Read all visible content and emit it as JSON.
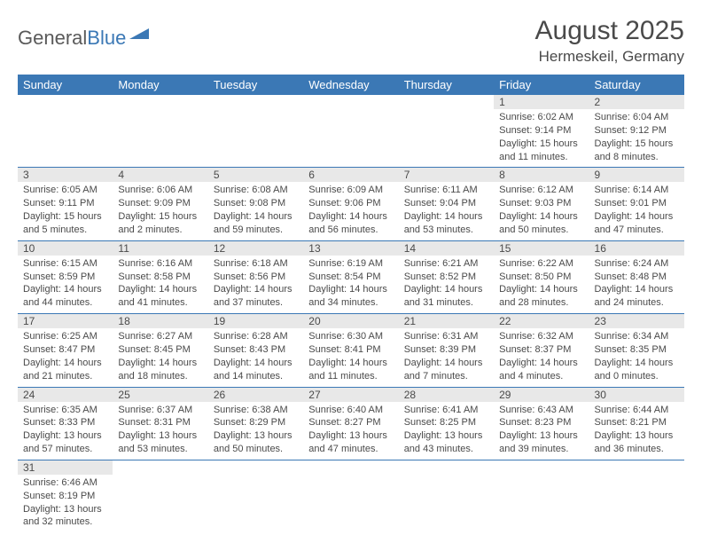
{
  "logo": {
    "text1": "General",
    "text2": "Blue"
  },
  "title": "August 2025",
  "location": "Hermeskeil, Germany",
  "day_headers": [
    "Sunday",
    "Monday",
    "Tuesday",
    "Wednesday",
    "Thursday",
    "Friday",
    "Saturday"
  ],
  "colors": {
    "header_bg": "#3b78b5",
    "header_text": "#ffffff",
    "daynum_bg": "#e8e8e8",
    "text": "#4a4a4a",
    "row_border": "#3b78b5"
  },
  "fonts": {
    "title_size": 30,
    "location_size": 17,
    "header_size": 13,
    "body_size": 11
  },
  "weeks": [
    [
      null,
      null,
      null,
      null,
      null,
      {
        "n": "1",
        "sr": "Sunrise: 6:02 AM",
        "ss": "Sunset: 9:14 PM",
        "d1": "Daylight: 15 hours",
        "d2": "and 11 minutes."
      },
      {
        "n": "2",
        "sr": "Sunrise: 6:04 AM",
        "ss": "Sunset: 9:12 PM",
        "d1": "Daylight: 15 hours",
        "d2": "and 8 minutes."
      }
    ],
    [
      {
        "n": "3",
        "sr": "Sunrise: 6:05 AM",
        "ss": "Sunset: 9:11 PM",
        "d1": "Daylight: 15 hours",
        "d2": "and 5 minutes."
      },
      {
        "n": "4",
        "sr": "Sunrise: 6:06 AM",
        "ss": "Sunset: 9:09 PM",
        "d1": "Daylight: 15 hours",
        "d2": "and 2 minutes."
      },
      {
        "n": "5",
        "sr": "Sunrise: 6:08 AM",
        "ss": "Sunset: 9:08 PM",
        "d1": "Daylight: 14 hours",
        "d2": "and 59 minutes."
      },
      {
        "n": "6",
        "sr": "Sunrise: 6:09 AM",
        "ss": "Sunset: 9:06 PM",
        "d1": "Daylight: 14 hours",
        "d2": "and 56 minutes."
      },
      {
        "n": "7",
        "sr": "Sunrise: 6:11 AM",
        "ss": "Sunset: 9:04 PM",
        "d1": "Daylight: 14 hours",
        "d2": "and 53 minutes."
      },
      {
        "n": "8",
        "sr": "Sunrise: 6:12 AM",
        "ss": "Sunset: 9:03 PM",
        "d1": "Daylight: 14 hours",
        "d2": "and 50 minutes."
      },
      {
        "n": "9",
        "sr": "Sunrise: 6:14 AM",
        "ss": "Sunset: 9:01 PM",
        "d1": "Daylight: 14 hours",
        "d2": "and 47 minutes."
      }
    ],
    [
      {
        "n": "10",
        "sr": "Sunrise: 6:15 AM",
        "ss": "Sunset: 8:59 PM",
        "d1": "Daylight: 14 hours",
        "d2": "and 44 minutes."
      },
      {
        "n": "11",
        "sr": "Sunrise: 6:16 AM",
        "ss": "Sunset: 8:58 PM",
        "d1": "Daylight: 14 hours",
        "d2": "and 41 minutes."
      },
      {
        "n": "12",
        "sr": "Sunrise: 6:18 AM",
        "ss": "Sunset: 8:56 PM",
        "d1": "Daylight: 14 hours",
        "d2": "and 37 minutes."
      },
      {
        "n": "13",
        "sr": "Sunrise: 6:19 AM",
        "ss": "Sunset: 8:54 PM",
        "d1": "Daylight: 14 hours",
        "d2": "and 34 minutes."
      },
      {
        "n": "14",
        "sr": "Sunrise: 6:21 AM",
        "ss": "Sunset: 8:52 PM",
        "d1": "Daylight: 14 hours",
        "d2": "and 31 minutes."
      },
      {
        "n": "15",
        "sr": "Sunrise: 6:22 AM",
        "ss": "Sunset: 8:50 PM",
        "d1": "Daylight: 14 hours",
        "d2": "and 28 minutes."
      },
      {
        "n": "16",
        "sr": "Sunrise: 6:24 AM",
        "ss": "Sunset: 8:48 PM",
        "d1": "Daylight: 14 hours",
        "d2": "and 24 minutes."
      }
    ],
    [
      {
        "n": "17",
        "sr": "Sunrise: 6:25 AM",
        "ss": "Sunset: 8:47 PM",
        "d1": "Daylight: 14 hours",
        "d2": "and 21 minutes."
      },
      {
        "n": "18",
        "sr": "Sunrise: 6:27 AM",
        "ss": "Sunset: 8:45 PM",
        "d1": "Daylight: 14 hours",
        "d2": "and 18 minutes."
      },
      {
        "n": "19",
        "sr": "Sunrise: 6:28 AM",
        "ss": "Sunset: 8:43 PM",
        "d1": "Daylight: 14 hours",
        "d2": "and 14 minutes."
      },
      {
        "n": "20",
        "sr": "Sunrise: 6:30 AM",
        "ss": "Sunset: 8:41 PM",
        "d1": "Daylight: 14 hours",
        "d2": "and 11 minutes."
      },
      {
        "n": "21",
        "sr": "Sunrise: 6:31 AM",
        "ss": "Sunset: 8:39 PM",
        "d1": "Daylight: 14 hours",
        "d2": "and 7 minutes."
      },
      {
        "n": "22",
        "sr": "Sunrise: 6:32 AM",
        "ss": "Sunset: 8:37 PM",
        "d1": "Daylight: 14 hours",
        "d2": "and 4 minutes."
      },
      {
        "n": "23",
        "sr": "Sunrise: 6:34 AM",
        "ss": "Sunset: 8:35 PM",
        "d1": "Daylight: 14 hours",
        "d2": "and 0 minutes."
      }
    ],
    [
      {
        "n": "24",
        "sr": "Sunrise: 6:35 AM",
        "ss": "Sunset: 8:33 PM",
        "d1": "Daylight: 13 hours",
        "d2": "and 57 minutes."
      },
      {
        "n": "25",
        "sr": "Sunrise: 6:37 AM",
        "ss": "Sunset: 8:31 PM",
        "d1": "Daylight: 13 hours",
        "d2": "and 53 minutes."
      },
      {
        "n": "26",
        "sr": "Sunrise: 6:38 AM",
        "ss": "Sunset: 8:29 PM",
        "d1": "Daylight: 13 hours",
        "d2": "and 50 minutes."
      },
      {
        "n": "27",
        "sr": "Sunrise: 6:40 AM",
        "ss": "Sunset: 8:27 PM",
        "d1": "Daylight: 13 hours",
        "d2": "and 47 minutes."
      },
      {
        "n": "28",
        "sr": "Sunrise: 6:41 AM",
        "ss": "Sunset: 8:25 PM",
        "d1": "Daylight: 13 hours",
        "d2": "and 43 minutes."
      },
      {
        "n": "29",
        "sr": "Sunrise: 6:43 AM",
        "ss": "Sunset: 8:23 PM",
        "d1": "Daylight: 13 hours",
        "d2": "and 39 minutes."
      },
      {
        "n": "30",
        "sr": "Sunrise: 6:44 AM",
        "ss": "Sunset: 8:21 PM",
        "d1": "Daylight: 13 hours",
        "d2": "and 36 minutes."
      }
    ],
    [
      {
        "n": "31",
        "sr": "Sunrise: 6:46 AM",
        "ss": "Sunset: 8:19 PM",
        "d1": "Daylight: 13 hours",
        "d2": "and 32 minutes."
      },
      null,
      null,
      null,
      null,
      null,
      null
    ]
  ]
}
